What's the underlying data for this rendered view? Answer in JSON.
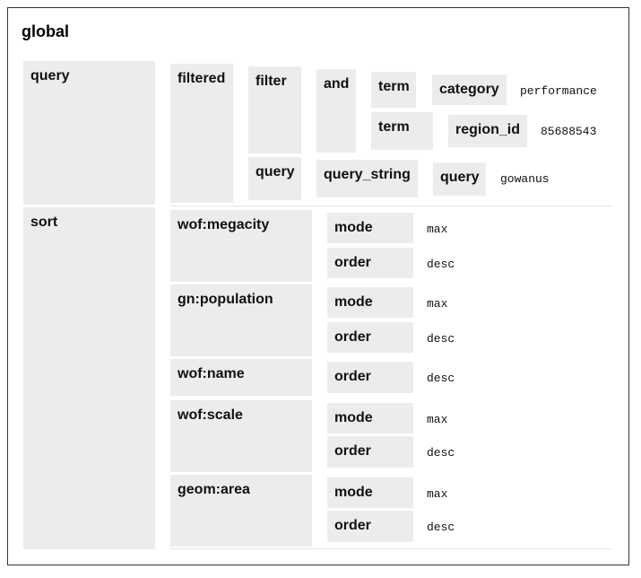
{
  "root": "global",
  "query": {
    "label": "query",
    "filtered": "filtered",
    "filter": "filter",
    "and": "and",
    "term1": {
      "label": "term",
      "key": "category",
      "value": "performance"
    },
    "term2": {
      "label": "term",
      "key": "region_id",
      "value": "85688543"
    },
    "inner_query": "query",
    "query_string": "query_string",
    "qs_key": "query",
    "qs_value": "gowanus"
  },
  "sort": {
    "label": "sort",
    "fields": [
      {
        "name": "wof:megacity",
        "props": [
          {
            "k": "mode",
            "v": "max"
          },
          {
            "k": "order",
            "v": "desc"
          }
        ]
      },
      {
        "name": "gn:population",
        "props": [
          {
            "k": "mode",
            "v": "max"
          },
          {
            "k": "order",
            "v": "desc"
          }
        ]
      },
      {
        "name": "wof:name",
        "props": [
          {
            "k": "order",
            "v": "desc"
          }
        ]
      },
      {
        "name": "wof:scale",
        "props": [
          {
            "k": "mode",
            "v": "max"
          },
          {
            "k": "order",
            "v": "desc"
          }
        ]
      },
      {
        "name": "geom:area",
        "props": [
          {
            "k": "mode",
            "v": "max"
          },
          {
            "k": "order",
            "v": "desc"
          }
        ]
      }
    ]
  }
}
